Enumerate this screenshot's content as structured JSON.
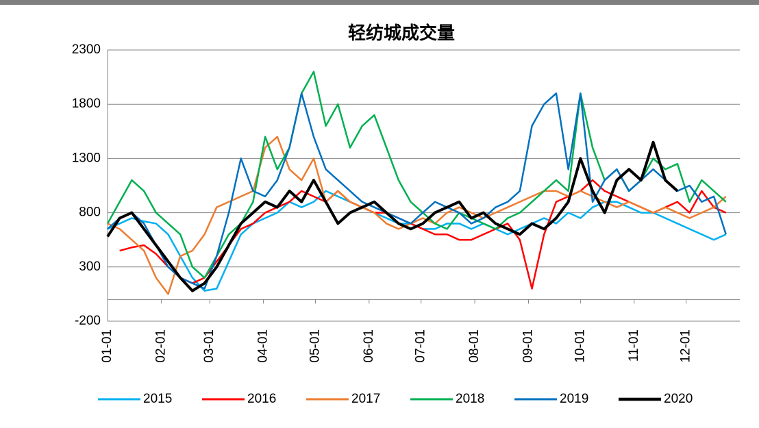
{
  "chart_data": {
    "type": "line",
    "title": "轻纺城成交量",
    "x": [
      0,
      7,
      14,
      21,
      28,
      35,
      42,
      49,
      56,
      63,
      70,
      77,
      84,
      91,
      98,
      105,
      112,
      119,
      126,
      133,
      140,
      147,
      154,
      161,
      168,
      175,
      182,
      189,
      196,
      203,
      210,
      217,
      224,
      231,
      238,
      245,
      252,
      259,
      266,
      273,
      280,
      287,
      294,
      301,
      308,
      315,
      322,
      329,
      336,
      343,
      350,
      357
    ],
    "xlim": [
      0,
      365
    ],
    "xticks": [
      {
        "value": 0,
        "label": "01-01"
      },
      {
        "value": 31,
        "label": "02-01"
      },
      {
        "value": 59,
        "label": "03-01"
      },
      {
        "value": 90,
        "label": "04-01"
      },
      {
        "value": 120,
        "label": "05-01"
      },
      {
        "value": 151,
        "label": "06-01"
      },
      {
        "value": 181,
        "label": "07-01"
      },
      {
        "value": 212,
        "label": "08-01"
      },
      {
        "value": 243,
        "label": "09-01"
      },
      {
        "value": 273,
        "label": "10-01"
      },
      {
        "value": 304,
        "label": "11-01"
      },
      {
        "value": 334,
        "label": "12-01"
      }
    ],
    "ylim": [
      -200,
      2300
    ],
    "yticks": [
      -200,
      300,
      800,
      1300,
      1800,
      2300
    ],
    "grid": true,
    "legend": "bottom",
    "series": [
      {
        "name": "2015",
        "color": "#00b0f0",
        "width": 2.5,
        "values": [
          650,
          700,
          750,
          720,
          700,
          600,
          400,
          200,
          80,
          100,
          350,
          600,
          700,
          750,
          800,
          900,
          850,
          900,
          1000,
          950,
          900,
          850,
          800,
          750,
          700,
          700,
          650,
          650,
          700,
          700,
          650,
          700,
          650,
          600,
          650,
          700,
          750,
          700,
          800,
          750,
          850,
          900,
          900,
          850,
          800,
          800,
          750,
          700,
          650,
          600,
          550,
          600
        ]
      },
      {
        "name": "2016",
        "color": "#ff0000",
        "width": 2.5,
        "values": [
          null,
          450,
          480,
          500,
          420,
          300,
          200,
          150,
          200,
          350,
          500,
          650,
          700,
          800,
          850,
          900,
          1000,
          950,
          900,
          1000,
          900,
          850,
          800,
          800,
          750,
          700,
          650,
          600,
          600,
          550,
          550,
          600,
          650,
          700,
          550,
          100,
          600,
          900,
          950,
          1000,
          1100,
          1000,
          950,
          900,
          850,
          800,
          850,
          900,
          800,
          1000,
          850,
          800
        ]
      },
      {
        "name": "2017",
        "color": "#ed7d31",
        "width": 2.5,
        "values": [
          700,
          650,
          550,
          450,
          200,
          50,
          400,
          450,
          600,
          850,
          900,
          950,
          1000,
          1400,
          1500,
          1200,
          1100,
          1300,
          900,
          1000,
          900,
          850,
          800,
          700,
          650,
          700,
          750,
          700,
          800,
          850,
          800,
          750,
          800,
          850,
          900,
          950,
          1000,
          1000,
          950,
          1000,
          950,
          900,
          850,
          900,
          850,
          800,
          850,
          800,
          750,
          800,
          850,
          950
        ]
      },
      {
        "name": "2018",
        "color": "#00b050",
        "width": 2.5,
        "values": [
          700,
          900,
          1100,
          1000,
          800,
          700,
          600,
          300,
          200,
          400,
          600,
          700,
          900,
          1500,
          1200,
          1400,
          1900,
          2100,
          1600,
          1800,
          1400,
          1600,
          1700,
          1400,
          1100,
          900,
          800,
          700,
          650,
          800,
          750,
          700,
          650,
          750,
          800,
          900,
          1000,
          1100,
          1000,
          1900,
          1400,
          1100,
          1200,
          1000,
          1100,
          1300,
          1200,
          1250,
          900,
          1100,
          1000,
          900
        ]
      },
      {
        "name": "2019",
        "color": "#0070c0",
        "width": 2.5,
        "values": [
          650,
          750,
          800,
          700,
          500,
          300,
          200,
          150,
          100,
          400,
          800,
          1300,
          1000,
          950,
          1100,
          1400,
          1900,
          1500,
          1200,
          1100,
          1000,
          900,
          850,
          800,
          750,
          700,
          800,
          900,
          850,
          800,
          700,
          750,
          850,
          900,
          1000,
          1600,
          1800,
          1900,
          1200,
          1900,
          900,
          1100,
          1200,
          1000,
          1100,
          1200,
          1100,
          1000,
          1050,
          900,
          950,
          600
        ]
      },
      {
        "name": "2020",
        "color": "#000000",
        "width": 4,
        "values": [
          580,
          750,
          800,
          650,
          500,
          350,
          200,
          80,
          150,
          300,
          500,
          700,
          800,
          900,
          850,
          1000,
          900,
          1100,
          900,
          700,
          800,
          850,
          900,
          800,
          700,
          650,
          700,
          800,
          850,
          900,
          750,
          800,
          700,
          650,
          600,
          700,
          650,
          750,
          900,
          1300,
          1000,
          800,
          1100,
          1200,
          1100,
          1450,
          1100,
          1000,
          null,
          null,
          null,
          null
        ]
      }
    ]
  }
}
